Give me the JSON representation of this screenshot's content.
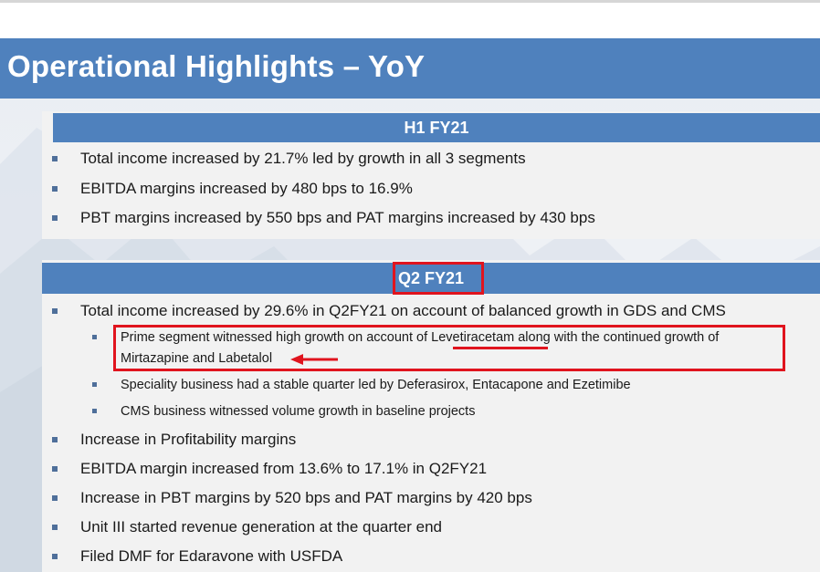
{
  "slide": {
    "title": "Operational Highlights – YoY",
    "h1_section": {
      "header": "H1 FY21",
      "bullets": [
        "Total income increased by 21.7% led by growth in all 3 segments",
        "EBITDA margins increased by 480 bps to 16.9%",
        "PBT margins increased by 550 bps and PAT margins increased by 430 bps"
      ]
    },
    "q2_section": {
      "header": "Q2 FY21",
      "bullet_main": "Total income increased by 29.6% in Q2FY21 on account of balanced growth in GDS and CMS",
      "sub_bullets": {
        "prime_line1_a": "Prime segment witnessed high growth on account of ",
        "prime_line1_b": "Levetiracetam",
        "prime_line1_c": " along with the continued growth of",
        "prime_line2": "Mirtazapine and Labetalol",
        "speciality": "Speciality business had a stable quarter led by Deferasirox, Entacapone and Ezetimibe",
        "cms": "CMS business witnessed volume growth in baseline projects"
      },
      "bullets_after": [
        "Increase in Profitability margins",
        "EBITDA margin increased from 13.6% to 17.1% in Q2FY21",
        "Increase in PBT margins by 520 bps and PAT margins by 420 bps",
        "Unit III started revenue generation at the quarter end",
        "Filed DMF for Edaravone with USFDA"
      ]
    },
    "colors": {
      "accent_blue": "#4f81bd",
      "highlight_red": "#e0141e"
    }
  }
}
